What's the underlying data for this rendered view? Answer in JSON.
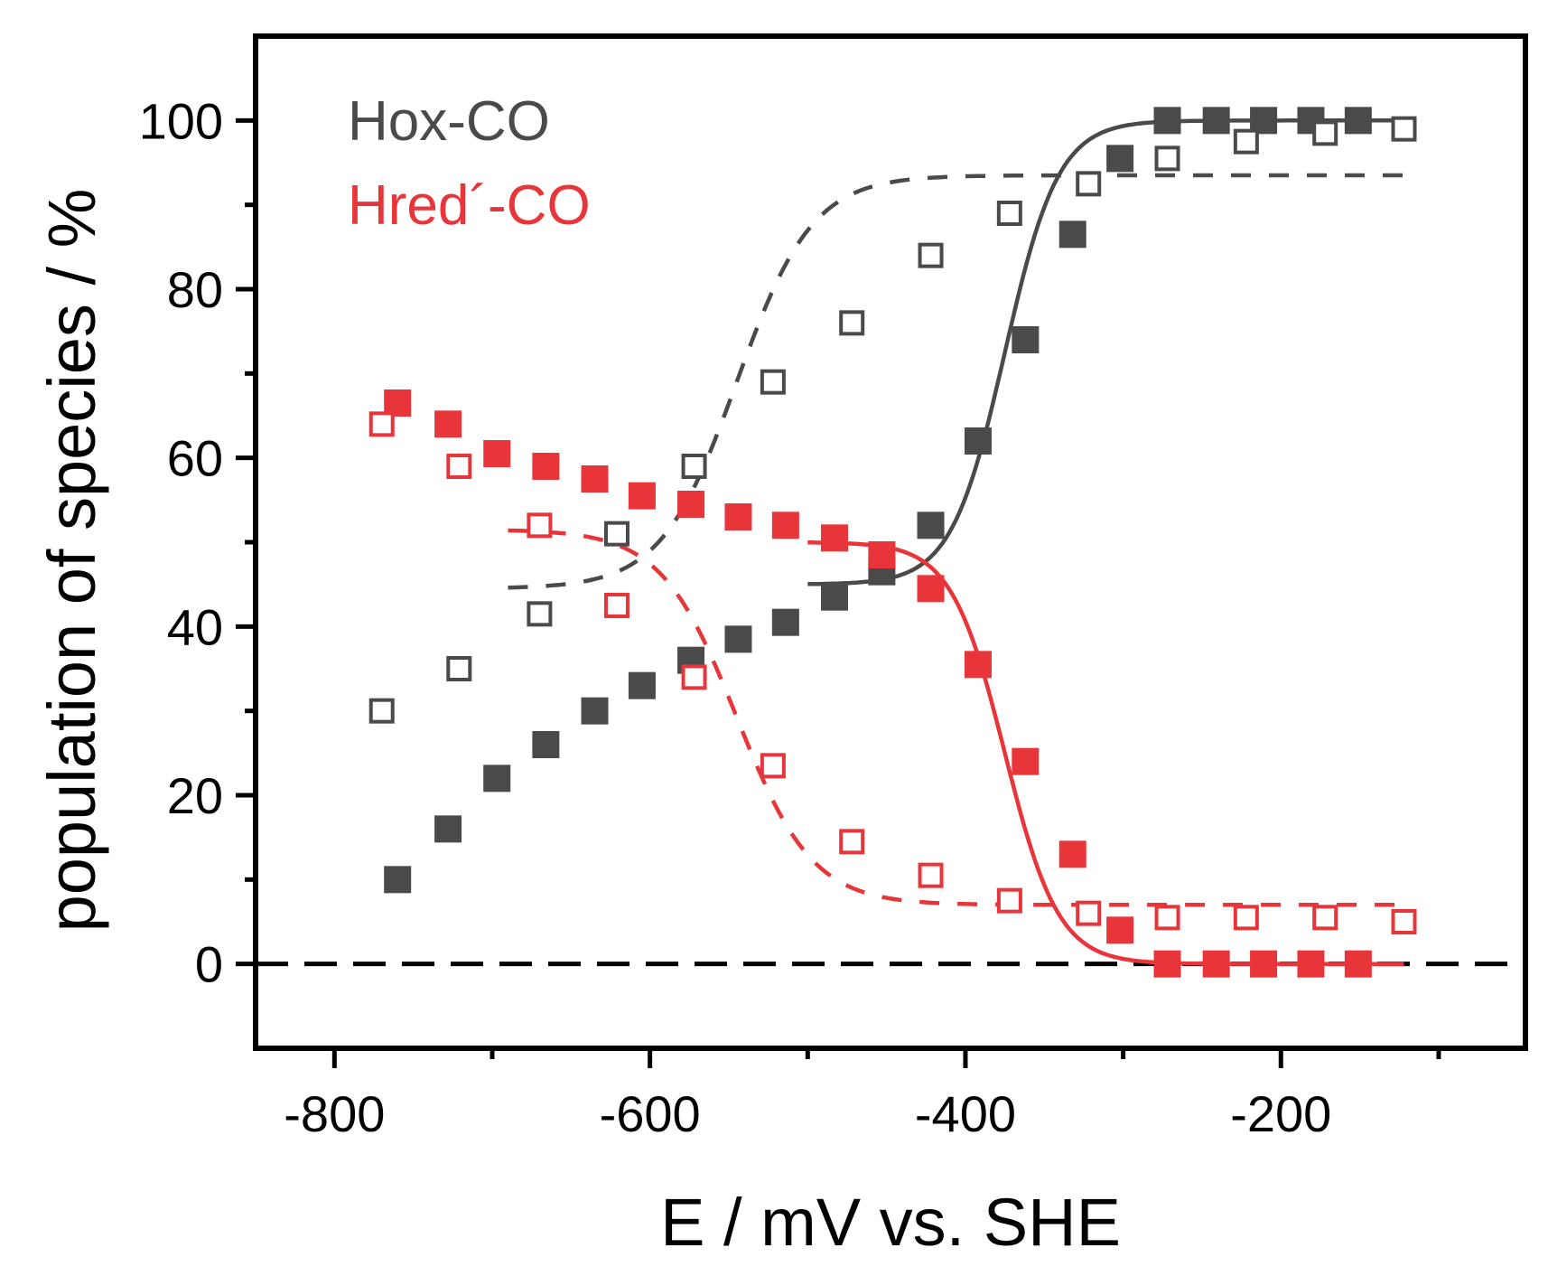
{
  "chart_data": {
    "type": "scatter",
    "xlabel": "E / mV vs. SHE",
    "ylabel": "population of species / %",
    "xlim": [
      -850,
      -45
    ],
    "ylim": [
      -10,
      110
    ],
    "x_ticks": [
      -800,
      -600,
      -400,
      -200
    ],
    "y_ticks": [
      0,
      20,
      40,
      60,
      80,
      100
    ],
    "x_tick_labels": [
      "-800",
      "-600",
      "-400",
      "-200"
    ],
    "y_tick_labels": [
      "0",
      "20",
      "40",
      "60",
      "80",
      "100"
    ],
    "reference_line": {
      "y": 0,
      "style": "dashed",
      "color": "#000000"
    },
    "legend": [
      {
        "label": "Hox-CO",
        "color": "#4a4a4a"
      },
      {
        "label": "Hred´-CO",
        "color": "#e8353a"
      }
    ],
    "colors": {
      "hox": "#4a4a4a",
      "hred": "#e8353a"
    },
    "series": [
      {
        "name": "Hox-CO (filled)",
        "color": "#4a4a4a",
        "marker": "square-filled",
        "points": [
          [
            -760,
            10
          ],
          [
            -728,
            16
          ],
          [
            -697,
            22
          ],
          [
            -666,
            26
          ],
          [
            -635,
            30
          ],
          [
            -605,
            33
          ],
          [
            -574,
            36
          ],
          [
            -544,
            38.5
          ],
          [
            -514,
            40.5
          ],
          [
            -483,
            43.5
          ],
          [
            -453,
            46.5
          ],
          [
            -422,
            52
          ],
          [
            -392,
            62
          ],
          [
            -362,
            74
          ],
          [
            -332,
            86.5
          ],
          [
            -302,
            95.5
          ],
          [
            -272,
            100
          ],
          [
            -241,
            100
          ],
          [
            -211,
            100
          ],
          [
            -181,
            100
          ],
          [
            -151,
            100
          ]
        ]
      },
      {
        "name": "Hred´-CO (filled)",
        "color": "#e8353a",
        "marker": "square-filled",
        "points": [
          [
            -760,
            66.5
          ],
          [
            -728,
            64
          ],
          [
            -697,
            60.5
          ],
          [
            -666,
            59
          ],
          [
            -635,
            57.5
          ],
          [
            -605,
            55.5
          ],
          [
            -574,
            54.5
          ],
          [
            -544,
            53
          ],
          [
            -514,
            52
          ],
          [
            -483,
            50.5
          ],
          [
            -453,
            48.5
          ],
          [
            -422,
            44.5
          ],
          [
            -392,
            35.5
          ],
          [
            -362,
            24
          ],
          [
            -332,
            13
          ],
          [
            -302,
            4
          ],
          [
            -272,
            0
          ],
          [
            -241,
            0
          ],
          [
            -211,
            0
          ],
          [
            -181,
            0
          ],
          [
            -151,
            0
          ]
        ]
      },
      {
        "name": "Hox-CO (open)",
        "color": "#4a4a4a",
        "marker": "square-open",
        "points": [
          [
            -770,
            30
          ],
          [
            -721,
            35
          ],
          [
            -670,
            41.5
          ],
          [
            -621,
            51
          ],
          [
            -572,
            59
          ],
          [
            -522,
            69
          ],
          [
            -472,
            76
          ],
          [
            -422,
            84
          ],
          [
            -372,
            89
          ],
          [
            -322,
            92.5
          ],
          [
            -272,
            95.5
          ],
          [
            -222,
            97.5
          ],
          [
            -172,
            98.5
          ],
          [
            -122,
            99
          ]
        ]
      },
      {
        "name": "Hred´-CO (open)",
        "color": "#e8353a",
        "marker": "square-open",
        "points": [
          [
            -770,
            64
          ],
          [
            -721,
            59
          ],
          [
            -670,
            52
          ],
          [
            -621,
            42.5
          ],
          [
            -572,
            34
          ],
          [
            -522,
            23.5
          ],
          [
            -472,
            14.5
          ],
          [
            -422,
            10.5
          ],
          [
            -372,
            7.5
          ],
          [
            -322,
            6
          ],
          [
            -272,
            5.5
          ],
          [
            -222,
            5.5
          ],
          [
            -172,
            5.5
          ],
          [
            -122,
            5
          ]
        ]
      }
    ],
    "fits": [
      {
        "name": "Hox-CO fit (solid)",
        "color": "#4a4a4a",
        "style": "solid",
        "domain": [
          -500,
          -122
        ],
        "midpoint": -375,
        "width": 17,
        "low": 45,
        "high": 100,
        "rising": true
      },
      {
        "name": "Hred´-CO fit (solid)",
        "color": "#e8353a",
        "style": "solid",
        "domain": [
          -500,
          -122
        ],
        "midpoint": -375,
        "width": 17,
        "low": 0,
        "high": 50,
        "rising": false
      },
      {
        "name": "Hox-CO fit (dashed)",
        "color": "#4a4a4a",
        "style": "dashed",
        "domain": [
          -690,
          -122
        ],
        "midpoint": -545,
        "width": 24,
        "low": 44.5,
        "high": 93.5,
        "rising": true
      },
      {
        "name": "Hred´-CO fit (dashed)",
        "color": "#e8353a",
        "style": "dashed",
        "domain": [
          -690,
          -122
        ],
        "midpoint": -545,
        "width": 24,
        "low": 7,
        "high": 51.5,
        "rising": false
      }
    ]
  }
}
